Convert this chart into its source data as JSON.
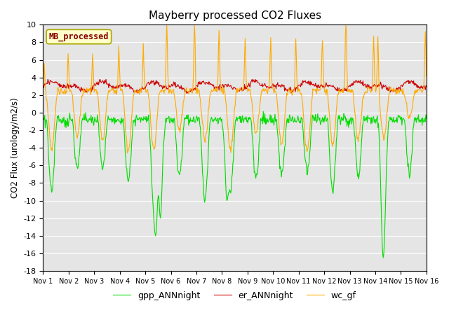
{
  "title": "Mayberry processed CO2 Fluxes",
  "ylabel": "CO2 Flux (urology/m2/s)",
  "ylim": [
    -18,
    10
  ],
  "yticks": [
    -18,
    -16,
    -14,
    -12,
    -10,
    -8,
    -6,
    -4,
    -2,
    0,
    2,
    4,
    6,
    8,
    10
  ],
  "legend_label": "MB_processed",
  "legend_facecolor": "#ffffcc",
  "legend_edgecolor": "#aaa800",
  "series": {
    "gpp_ANNnight": {
      "color": "#00dd00",
      "linewidth": 0.8
    },
    "er_ANNnight": {
      "color": "#cc0000",
      "linewidth": 0.8
    },
    "wc_gf": {
      "color": "#ffaa00",
      "linewidth": 0.8
    }
  },
  "fig_facecolor": "#ffffff",
  "axes_facecolor": "#e5e5e5",
  "grid_color": "#ffffff",
  "n_points": 720,
  "days": 15
}
